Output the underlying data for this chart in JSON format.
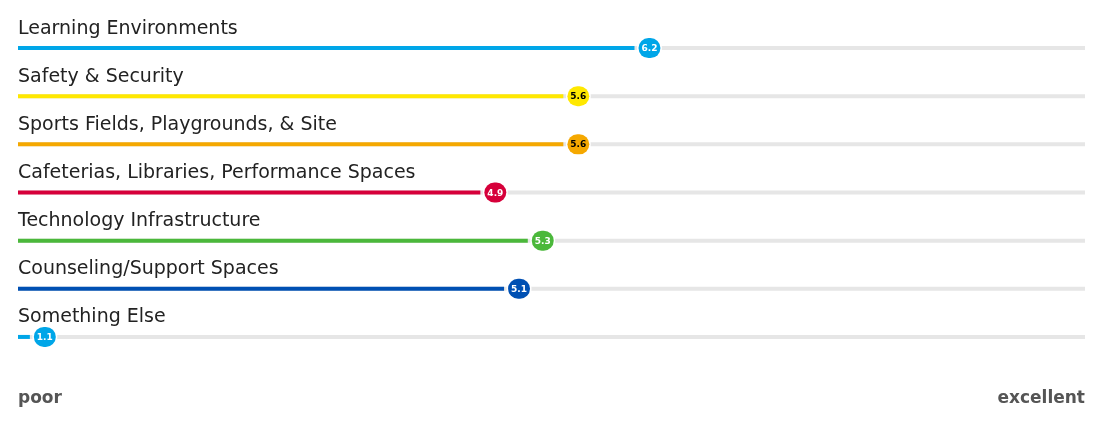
{
  "chart_data": {
    "type": "bar",
    "orientation": "horizontal",
    "categories": [
      "Learning Environments",
      "Safety & Security",
      "Sports Fields, Playgrounds, & Site",
      "Cafeterias, Libraries, Performance Spaces",
      "Technology Infrastructure",
      "Counseling/Support Spaces",
      "Something Else"
    ],
    "values": [
      6.2,
      5.6,
      5.6,
      4.9,
      5.3,
      5.1,
      1.1
    ],
    "colors": [
      "#00a6e8",
      "#ffe800",
      "#f5a800",
      "#d6003a",
      "#4bb83b",
      "#0050b3",
      "#00a6e8"
    ],
    "xlim": [
      1,
      10
    ],
    "annotations": [
      "poor",
      "excellent"
    ],
    "data_labels": true
  }
}
